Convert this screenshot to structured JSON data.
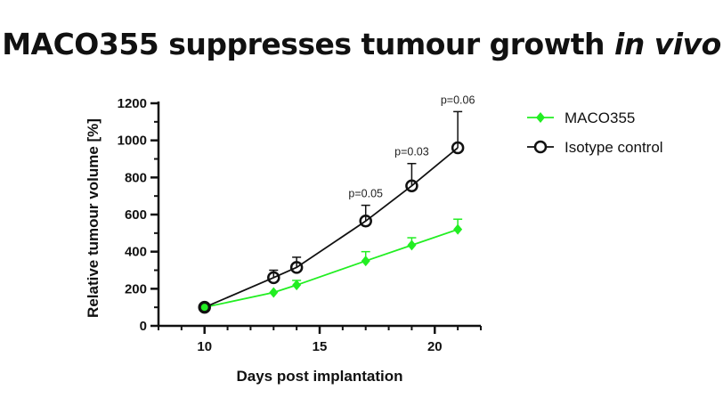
{
  "title_main": "MACO355 suppresses tumour growth",
  "title_italic": "in vivo",
  "chart_data": {
    "type": "line",
    "xlabel": "Days post implantation",
    "ylabel": "Relative tumour volume [%]",
    "xlim": [
      8,
      22
    ],
    "ylim": [
      0,
      1200
    ],
    "xticks": [
      10,
      15,
      20
    ],
    "yticks": [
      0,
      200,
      400,
      600,
      800,
      1000,
      1200
    ],
    "legend_position": "top-right",
    "series": [
      {
        "name": "MACO355",
        "color": "#22ee22",
        "marker": "diamond",
        "x": [
          10,
          13,
          14,
          17,
          19,
          21
        ],
        "y": [
          100,
          180,
          220,
          350,
          435,
          520
        ],
        "error_upper": [
          0,
          0,
          25,
          50,
          40,
          55
        ]
      },
      {
        "name": "Isotype control",
        "color": "#111111",
        "marker": "open-circle",
        "x": [
          10,
          13,
          14,
          17,
          19,
          21
        ],
        "y": [
          100,
          260,
          315,
          565,
          755,
          960
        ],
        "error_upper": [
          0,
          40,
          55,
          85,
          120,
          195
        ]
      }
    ],
    "annotations": [
      {
        "text": "p=0.05",
        "x": 17
      },
      {
        "text": "p=0.03",
        "x": 19
      },
      {
        "text": "p=0.06",
        "x": 21
      }
    ]
  }
}
